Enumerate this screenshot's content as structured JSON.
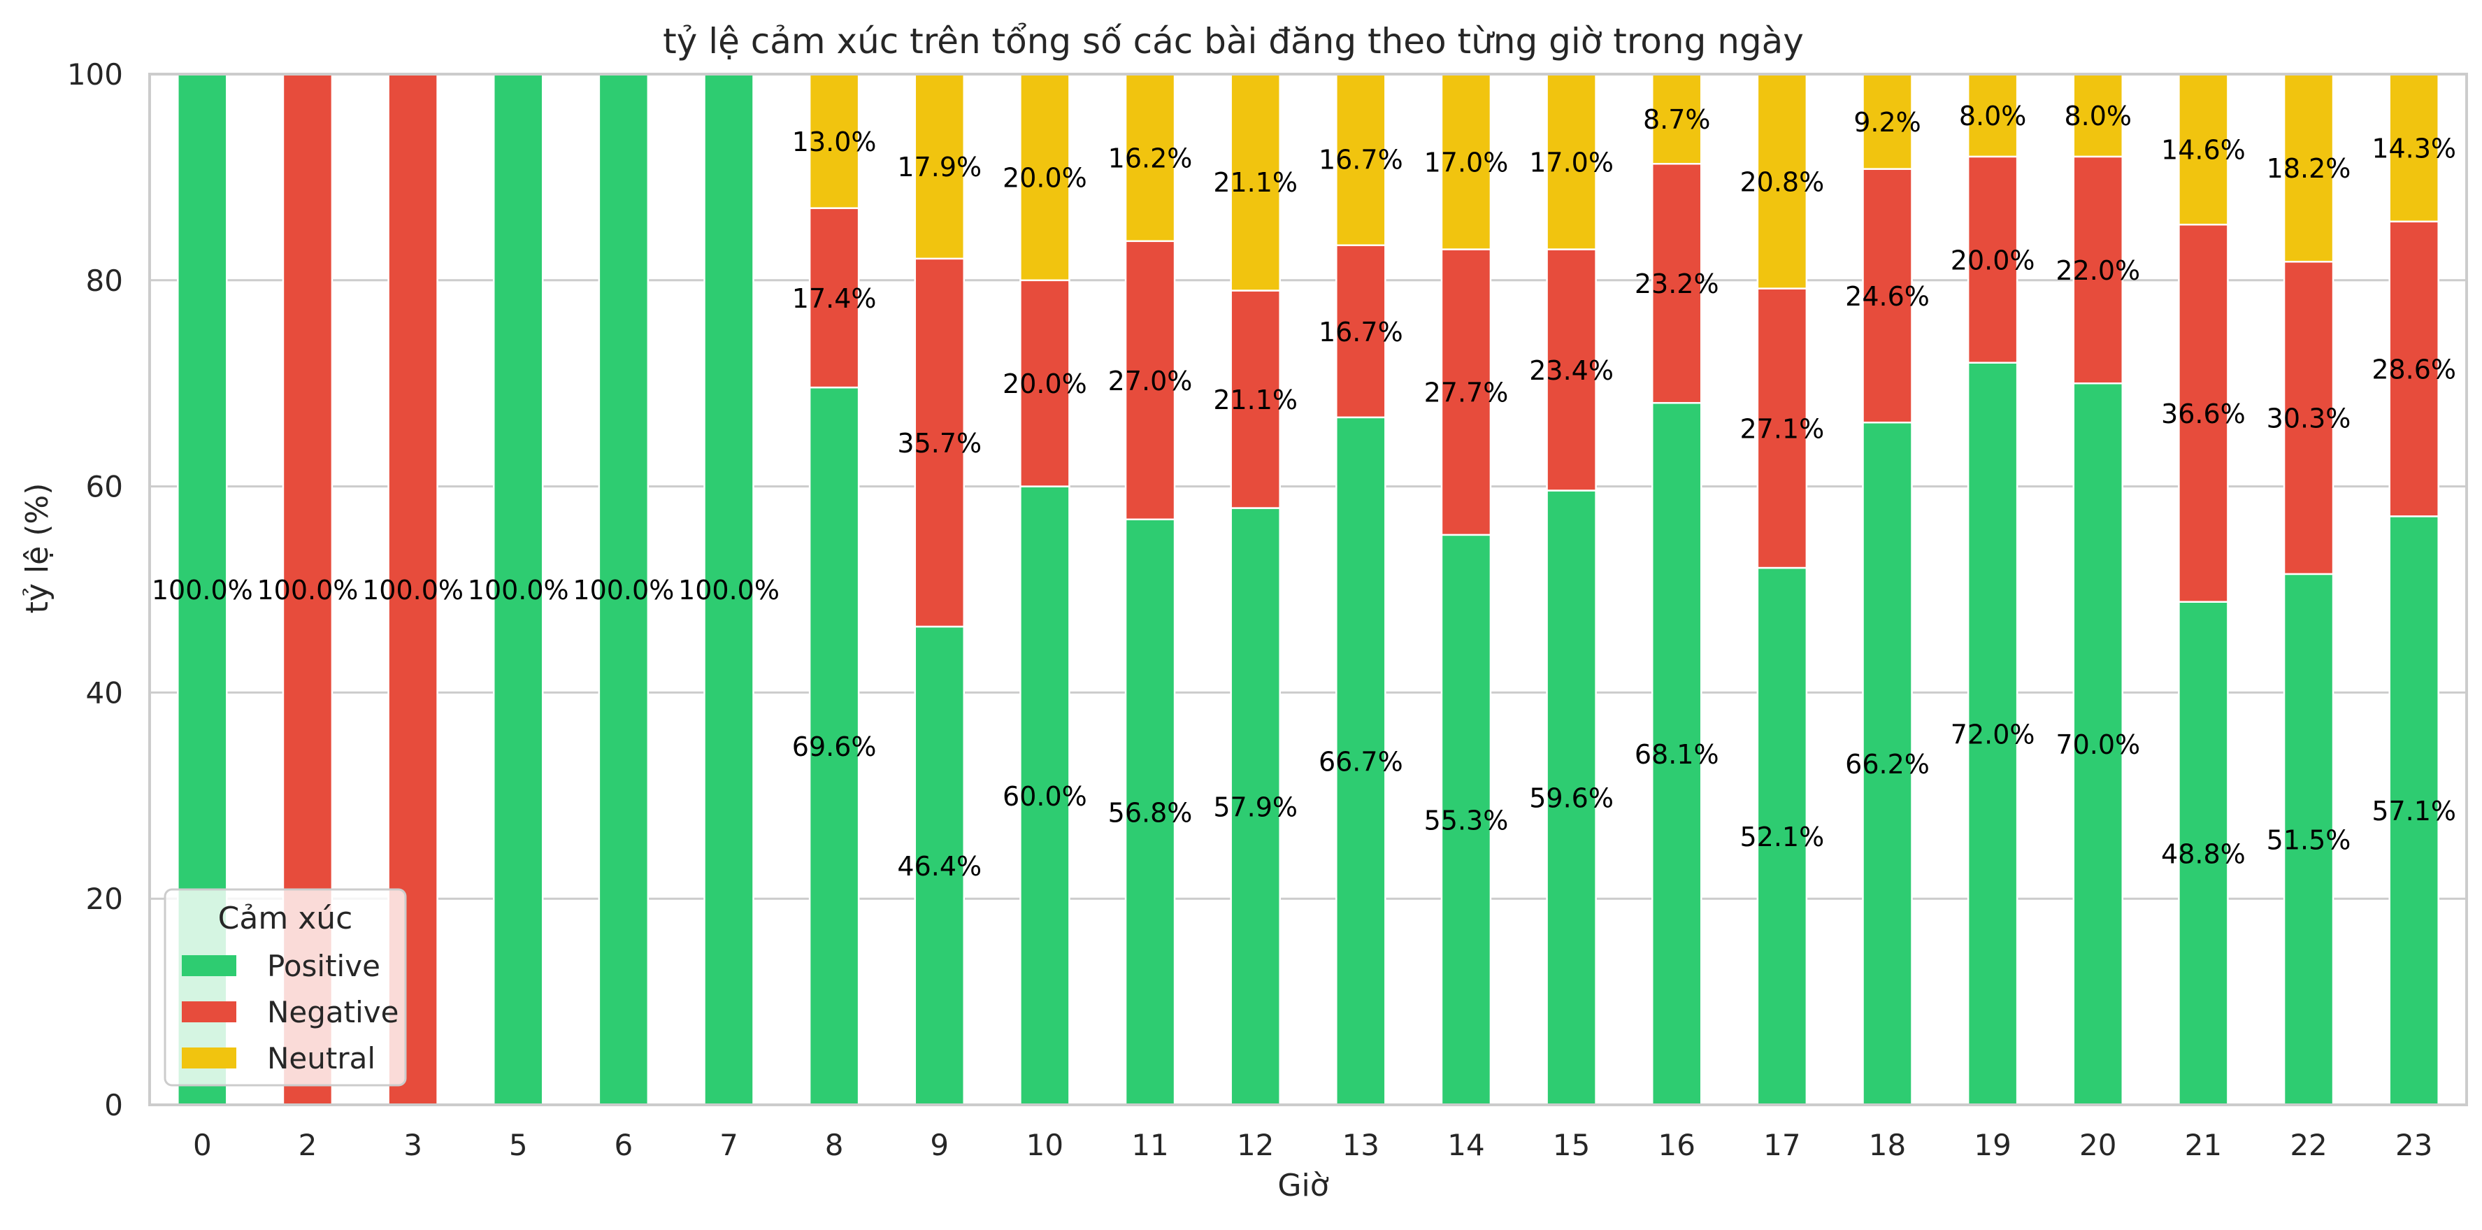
{
  "chart_data": {
    "type": "bar",
    "stacked": true,
    "percent_stacked": true,
    "title": "tỷ lệ cảm xúc trên tổng số các bài đăng theo từng giờ trong ngày",
    "xlabel": "Giờ",
    "ylabel": "tỷ lệ (%)",
    "ylim": [
      0,
      100
    ],
    "yticks": [
      "0",
      "20",
      "40",
      "60",
      "80",
      "100"
    ],
    "grid": "horizontal",
    "legend": {
      "title": "Cảm xúc",
      "position": "bottom-left"
    },
    "categories": [
      "0",
      "2",
      "3",
      "5",
      "6",
      "7",
      "8",
      "9",
      "10",
      "11",
      "12",
      "13",
      "14",
      "15",
      "16",
      "17",
      "18",
      "19",
      "20",
      "21",
      "22",
      "23"
    ],
    "series": [
      {
        "name": "Positive",
        "color": "#2ecc71",
        "values": [
          100.0,
          0,
          0,
          100.0,
          100.0,
          100.0,
          69.6,
          46.4,
          60.0,
          56.8,
          57.9,
          66.7,
          55.3,
          59.6,
          68.1,
          52.1,
          66.2,
          72.0,
          70.0,
          48.8,
          51.5,
          57.1
        ],
        "labels": [
          "100.0%",
          "",
          "",
          "100.0%",
          "100.0%",
          "100.0%",
          "69.6%",
          "46.4%",
          "60.0%",
          "56.8%",
          "57.9%",
          "66.7%",
          "55.3%",
          "59.6%",
          "68.1%",
          "52.1%",
          "66.2%",
          "72.0%",
          "70.0%",
          "48.8%",
          "51.5%",
          "57.1%"
        ]
      },
      {
        "name": "Negative",
        "color": "#e74c3c",
        "values": [
          0,
          100.0,
          100.0,
          0,
          0,
          0,
          17.4,
          35.7,
          20.0,
          27.0,
          21.1,
          16.7,
          27.7,
          23.4,
          23.2,
          27.1,
          24.6,
          20.0,
          22.0,
          36.6,
          30.3,
          28.6
        ],
        "labels": [
          "",
          "100.0%",
          "100.0%",
          "",
          "",
          "",
          "17.4%",
          "35.7%",
          "20.0%",
          "27.0%",
          "21.1%",
          "16.7%",
          "27.7%",
          "23.4%",
          "23.2%",
          "27.1%",
          "24.6%",
          "20.0%",
          "22.0%",
          "36.6%",
          "30.3%",
          "28.6%"
        ]
      },
      {
        "name": "Neutral",
        "color": "#f1c40f",
        "values": [
          0,
          0,
          0,
          0,
          0,
          0,
          13.0,
          17.9,
          20.0,
          16.2,
          21.1,
          16.7,
          17.0,
          17.0,
          8.7,
          20.8,
          9.2,
          8.0,
          8.0,
          14.6,
          18.2,
          14.3
        ],
        "labels": [
          "",
          "",
          "",
          "",
          "",
          "",
          "13.0%",
          "17.9%",
          "20.0%",
          "16.2%",
          "21.1%",
          "16.7%",
          "17.0%",
          "17.0%",
          "8.7%",
          "20.8%",
          "9.2%",
          "8.0%",
          "8.0%",
          "14.6%",
          "18.2%",
          "14.3%"
        ]
      }
    ]
  }
}
